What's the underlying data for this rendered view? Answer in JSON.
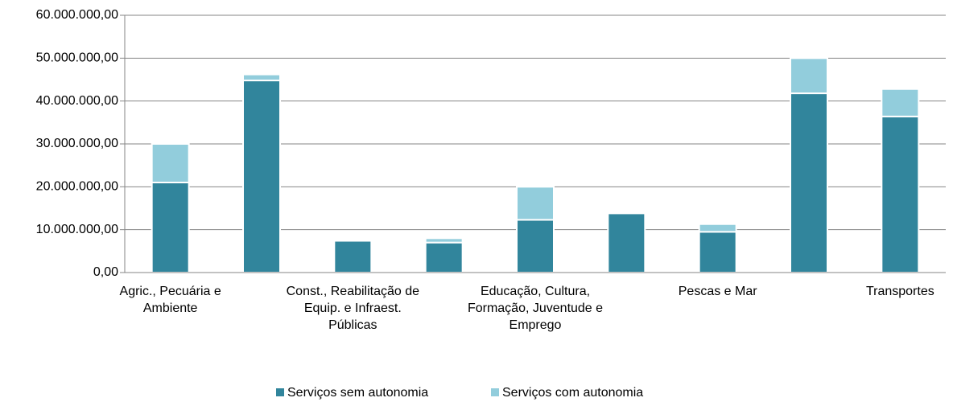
{
  "chart_data": {
    "type": "stacked_bar",
    "categories": [
      "Agric., Pecuária e Ambiente",
      null,
      "Const., Reabilitação de Equip. e Infraest. Públicas",
      null,
      "Educação, Cultura, Formação, Juventude e Emprego",
      null,
      "Pescas e Mar",
      null,
      "Transportes"
    ],
    "series": [
      {
        "name": "Serviços sem autonomia",
        "color": "#31859c",
        "values": [
          21000000,
          44800000,
          7400000,
          7000000,
          12300000,
          13800000,
          9500000,
          41800000,
          36400000
        ]
      },
      {
        "name": "Serviços com autonomia",
        "color": "#92cddc",
        "values": [
          9000000,
          1400000,
          0,
          1000000,
          7700000,
          0,
          1800000,
          8200000,
          6400000
        ]
      }
    ],
    "ylim": [
      0,
      60000000
    ],
    "yticks": [
      {
        "value": 0,
        "label": "0,00"
      },
      {
        "value": 10000000,
        "label": "10.000.000,00"
      },
      {
        "value": 20000000,
        "label": "20.000.000,00"
      },
      {
        "value": 30000000,
        "label": "30.000.000,00"
      },
      {
        "value": 40000000,
        "label": "40.000.000,00"
      },
      {
        "value": 50000000,
        "label": "50.000.000,00"
      },
      {
        "value": 60000000,
        "label": "60.000.000,00"
      }
    ],
    "grid": true,
    "legend": "bottom"
  }
}
